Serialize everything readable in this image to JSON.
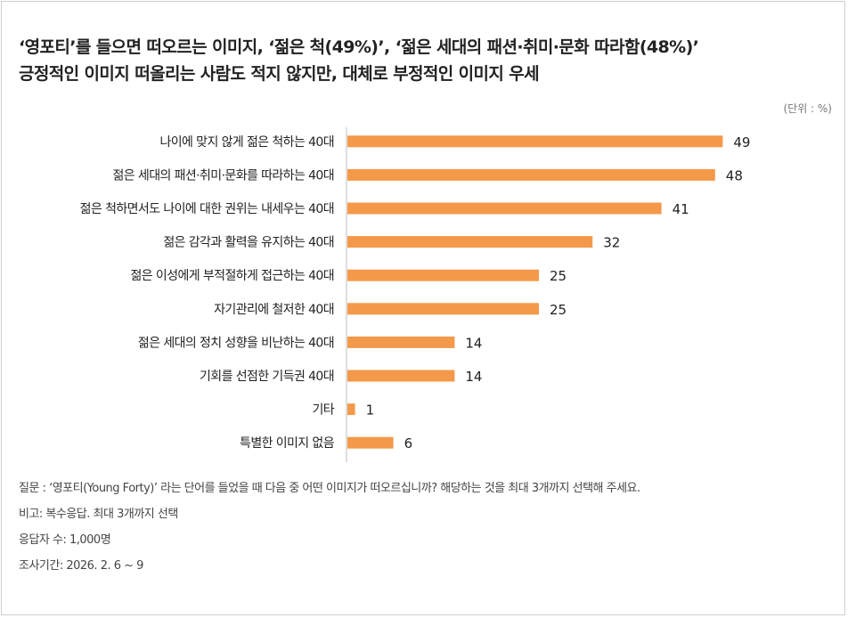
{
  "title": {
    "line1": "‘영포티’를 들으면 떠오르는 이미지, ‘젊은 척(49%)’, ‘젊은 세대의 패션·취미·문화 따라함(48%)’",
    "line2": "긍정적인 이미지 떠올리는 사람도 적지 않지만, 대체로 부정적인 이미지 우세"
  },
  "unit_label": "(단위 : %)",
  "colors": {
    "bar": "#f4994a",
    "axis": "#bdbdbd"
  },
  "chart_data": {
    "type": "bar",
    "orientation": "horizontal",
    "categories": [
      "나이에 맞지 않게 젊은 척하는 40대",
      "젊은 세대의 패션·취미·문화를 따라하는 40대",
      "젊은 척하면서도 나이에 대한 권위는 내세우는 40대",
      "젊은 감각과 활력을 유지하는 40대",
      "젊은 이성에게 부적절하게 접근하는 40대",
      "자기관리에 철저한 40대",
      "젊은 세대의 정치 성향을 비난하는 40대",
      "기회를 선점한 기득권 40대",
      "기타",
      "특별한 이미지 없음"
    ],
    "values": [
      49,
      48,
      41,
      32,
      25,
      25,
      14,
      14,
      1,
      6
    ],
    "xlim": [
      0,
      50
    ]
  },
  "notes": {
    "question": "질문 : ‘영포티(Young Forty)’ 라는 단어를 들었을 때 다음 중 어떤 이미지가 떠오르십니까? 해당하는 것을 최대 3개까지 선택해 주세요.",
    "remark": "비고: 복수응답. 최대 3개까지 선택",
    "respondents": "응답자 수: 1,000명",
    "period": "조사기간: 2026.  2. 6 ~  9"
  }
}
